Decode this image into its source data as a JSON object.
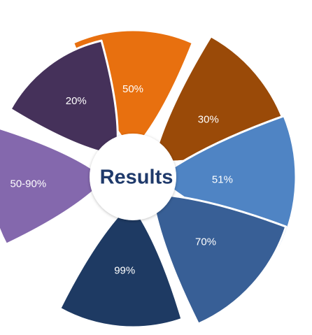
{
  "center": {
    "label": "Results",
    "label_color": "#1f3a6b"
  },
  "petals": [
    {
      "label": "50%",
      "color": "#e8700f"
    },
    {
      "label": "30%",
      "color": "#9a4a08"
    },
    {
      "label": "51%",
      "color": "#4f84c4"
    },
    {
      "label": "70%",
      "color": "#385f96"
    },
    {
      "label": "99%",
      "color": "#1e3a63"
    },
    {
      "label": "50-90%",
      "color": "#8468ad"
    },
    {
      "label": "20%",
      "color": "#45315a"
    }
  ]
}
